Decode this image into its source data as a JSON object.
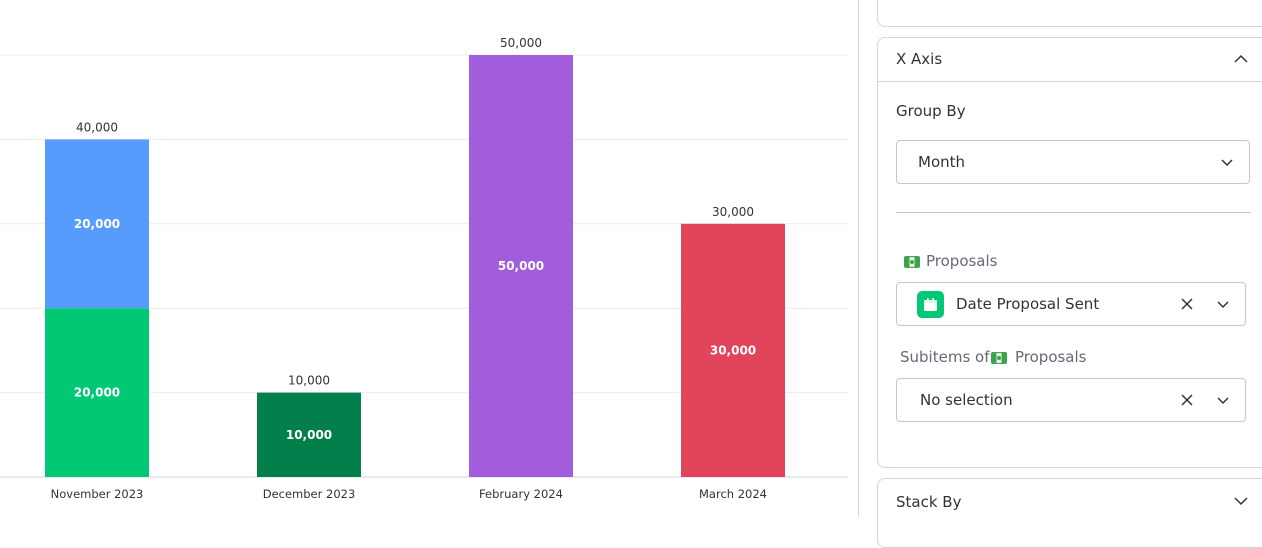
{
  "chart_data": {
    "type": "bar",
    "stacked": true,
    "categories": [
      "November 2023",
      "December 2023",
      "February 2024",
      "March 2024"
    ],
    "series": [
      {
        "values": [
          20000,
          10000,
          50000,
          30000
        ],
        "colors": [
          "#00c875",
          "#037f4c",
          "#a25ddc",
          "#e2445c"
        ]
      },
      {
        "values": [
          20000,
          0,
          0,
          0
        ],
        "colors": [
          "#579bfc",
          "#579bfc",
          "#579bfc",
          "#579bfc"
        ]
      }
    ],
    "segment_labels": [
      [
        "20,000",
        "10,000",
        "50,000",
        "30,000"
      ],
      [
        "20,000",
        "",
        "",
        ""
      ]
    ],
    "total_labels": [
      "40,000",
      "10,000",
      "50,000",
      "30,000"
    ],
    "ylim": [
      0,
      50000
    ],
    "grid": true,
    "legend": "none"
  },
  "side_panel": {
    "x_axis_section": {
      "title": "X Axis",
      "group_by_label": "Group By",
      "group_by_value": "Month",
      "board_label": "Proposals",
      "board_column_value": "Date Proposal Sent",
      "subitems_prefix": "Subitems of",
      "subitems_board": "Proposals",
      "subitems_value": "No selection"
    },
    "stack_by_section": {
      "title": "Stack By"
    }
  },
  "colors": {
    "accent_green": "#00c875",
    "border": "#c3c6d4",
    "text": "#323338",
    "muted_text": "#676879"
  },
  "icons": {
    "collapse": "chevron-up-icon",
    "expand": "chevron-down-icon",
    "clear": "close-icon",
    "board": "money-icon",
    "column": "calendar-icon"
  }
}
